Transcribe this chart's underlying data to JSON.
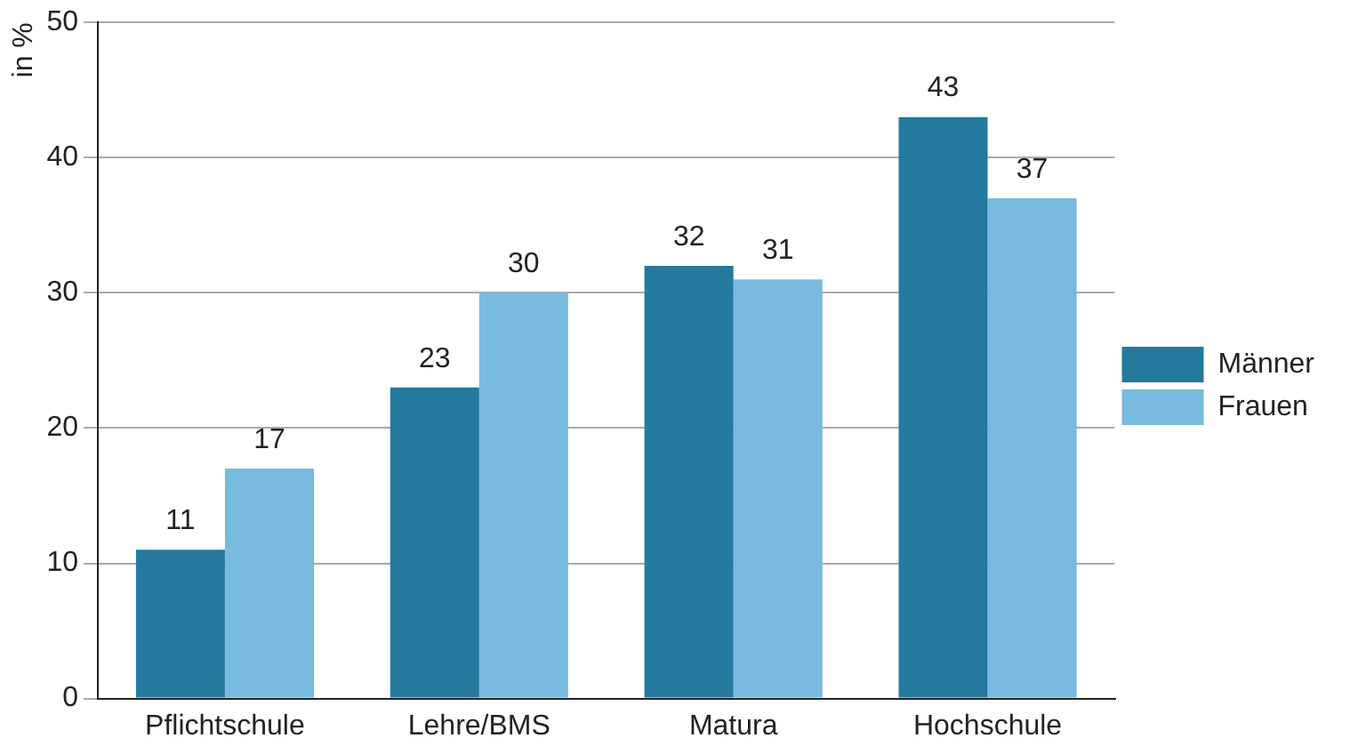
{
  "chart_data": {
    "type": "bar",
    "ylabel": "in %",
    "categories": [
      "Pflichtschule",
      "Lehre/BMS",
      "Matura",
      "Hochschule"
    ],
    "series": [
      {
        "name": "Männer",
        "color": "#247a9e",
        "values": [
          11,
          23,
          32,
          43
        ]
      },
      {
        "name": "Frauen",
        "color": "#78b9de",
        "values": [
          17,
          30,
          31,
          37
        ]
      }
    ],
    "ylim": [
      0,
      50
    ],
    "yticks": [
      0,
      10,
      20,
      30,
      40,
      50
    ],
    "grid": "y",
    "legend": "right",
    "data_labels": true
  }
}
